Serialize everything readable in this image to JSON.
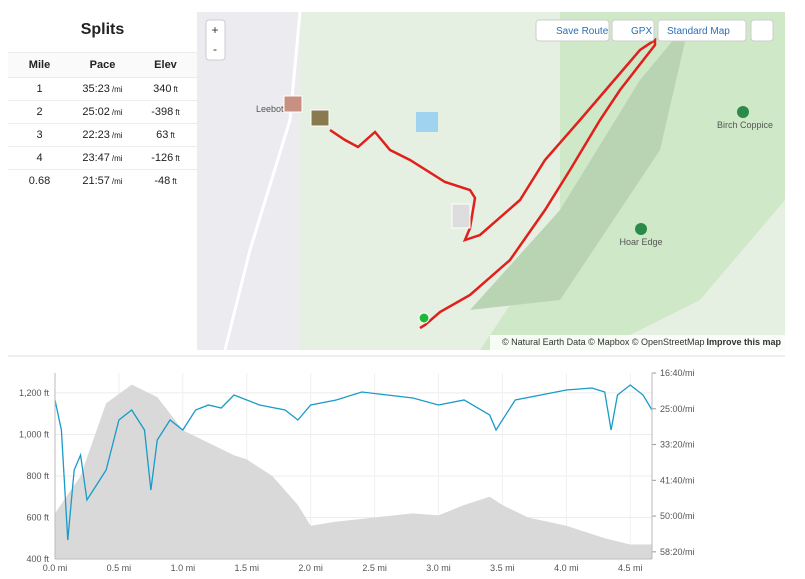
{
  "splits": {
    "title": "Splits",
    "columns": [
      "Mile",
      "Pace",
      "Elev"
    ],
    "rows": [
      [
        "1",
        "35:23",
        "/mi",
        "340",
        "ft"
      ],
      [
        "2",
        "25:02",
        "/mi",
        "-398",
        "ft"
      ],
      [
        "3",
        "22:23",
        "/mi",
        "63",
        "ft"
      ],
      [
        "4",
        "23:47",
        "/mi",
        "-126",
        "ft"
      ],
      [
        "0.68",
        "21:57",
        "/mi",
        "-48",
        "ft"
      ]
    ]
  },
  "map": {
    "zoom_in": "+",
    "zoom_out": "-",
    "save_route": "Save Route",
    "gpx": "GPX",
    "map_style": "Standard Map",
    "places": [
      "Leebot",
      "Birch Coppice",
      "Hoar Edge"
    ],
    "attribution": "© Natural Earth Data © Mapbox © OpenStreetMap",
    "improve": "Improve this map"
  },
  "chart": {
    "type": "area-line",
    "xlim": [
      0,
      4.67
    ],
    "xticks": [
      {
        "value": 0,
        "label": "0.0 mi"
      },
      {
        "value": 0.5,
        "label": "0.5 mi"
      },
      {
        "value": 1,
        "label": "1.0 mi"
      },
      {
        "value": 1.5,
        "label": "1.5 mi"
      },
      {
        "value": 2,
        "label": "2.0 mi"
      },
      {
        "value": 2.5,
        "label": "2.5 mi"
      },
      {
        "value": 3,
        "label": "3.0 mi"
      },
      {
        "value": 3.5,
        "label": "3.5 mi"
      },
      {
        "value": 4,
        "label": "4.0 mi"
      },
      {
        "value": 4.5,
        "label": "4.5 mi"
      }
    ],
    "ylim": [
      400,
      1296
    ],
    "yticks": [
      {
        "value": 400,
        "label": "400 ft"
      },
      {
        "value": 600,
        "label": "600 ft"
      },
      {
        "value": 800,
        "label": "800 ft"
      },
      {
        "value": 1000,
        "label": "1,000 ft"
      },
      {
        "value": 1200,
        "label": "1,200 ft"
      }
    ],
    "y2lim": [
      1000,
      3600
    ],
    "y2_inverted": true,
    "y2ticks": [
      {
        "value": 1000,
        "label": "16:40/mi"
      },
      {
        "value": 1500,
        "label": "25:00/mi"
      },
      {
        "value": 2000,
        "label": "33:20/mi"
      },
      {
        "value": 2500,
        "label": "41:40/mi"
      },
      {
        "value": 3000,
        "label": "50:00/mi"
      },
      {
        "value": 3500,
        "label": "58:20/mi"
      }
    ],
    "elevation": {
      "color": "#d9d9d9",
      "x": [
        0,
        0.2,
        0.4,
        0.6,
        0.8,
        1.0,
        1.2,
        1.4,
        1.5,
        1.7,
        1.9,
        2.0,
        2.2,
        2.5,
        2.8,
        3.0,
        3.2,
        3.4,
        3.5,
        3.7,
        4.0,
        4.3,
        4.5,
        4.67
      ],
      "values": [
        620,
        800,
        1150,
        1240,
        1180,
        1020,
        960,
        900,
        880,
        800,
        660,
        560,
        580,
        600,
        620,
        610,
        660,
        700,
        660,
        600,
        560,
        500,
        470,
        470
      ]
    },
    "pace": {
      "color": "#1a9ac8",
      "axis": "y2",
      "x": [
        0,
        0.05,
        0.1,
        0.15,
        0.2,
        0.25,
        0.3,
        0.4,
        0.5,
        0.6,
        0.7,
        0.75,
        0.8,
        0.9,
        1.0,
        1.1,
        1.2,
        1.3,
        1.4,
        1.6,
        1.8,
        1.9,
        2.0,
        2.2,
        2.4,
        2.6,
        2.8,
        3.0,
        3.2,
        3.4,
        3.45,
        3.6,
        3.8,
        4.0,
        4.2,
        4.3,
        4.35,
        4.4,
        4.5,
        4.6,
        4.67
      ],
      "values": [
        1377,
        1797,
        3335,
        2356,
        2146,
        2775,
        2636,
        2356,
        1657,
        1517,
        1797,
        2636,
        1937,
        1657,
        1797,
        1517,
        1447,
        1489,
        1308,
        1447,
        1517,
        1657,
        1447,
        1377,
        1266,
        1308,
        1350,
        1447,
        1377,
        1587,
        1797,
        1377,
        1308,
        1238,
        1210,
        1266,
        1797,
        1308,
        1168,
        1308,
        1517
      ]
    }
  }
}
